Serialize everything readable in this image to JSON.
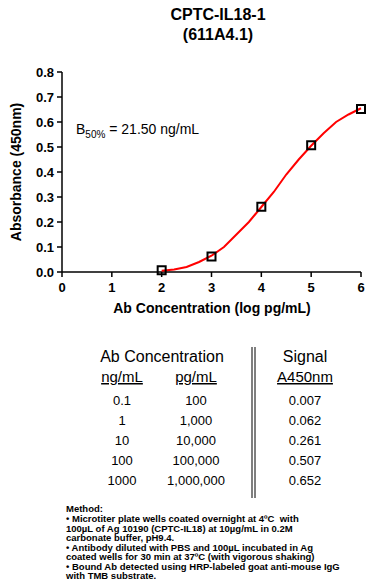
{
  "chart_data": {
    "type": "scatter",
    "title": "CPTC-IL18-1",
    "subtitle": "(611A4.1)",
    "x_label": "Ab Concentration (log pg/mL)",
    "y_label": "Absorbance (450nm)",
    "annotation": {
      "text": "B",
      "subscript": "50%",
      "suffix": " = 21.50 ng/mL"
    },
    "xlim": [
      0,
      6
    ],
    "xticks": [
      0,
      1,
      2,
      3,
      4,
      5,
      6
    ],
    "ylim": [
      0,
      0.8
    ],
    "yticks": [
      {
        "value": 0,
        "label": "0.0"
      },
      0.1,
      0.2,
      0.3,
      0.4,
      0.5,
      0.6,
      0.7,
      0.8
    ],
    "grid": false,
    "series": [
      {
        "type": "line",
        "color": "#ff0000",
        "line_style": "solid",
        "x": [
          2,
          2.25,
          2.5,
          2.75,
          3,
          3.25,
          3.5,
          3.75,
          4,
          4.25,
          4.5,
          4.75,
          5,
          5.25,
          5.5,
          5.75,
          6
        ],
        "values": [
          0.005,
          0.01,
          0.02,
          0.04,
          0.065,
          0.1,
          0.15,
          0.2,
          0.26,
          0.32,
          0.39,
          0.45,
          0.505,
          0.555,
          0.6,
          0.63,
          0.655
        ]
      },
      {
        "type": "scatter",
        "color": "#000000",
        "marker": "square",
        "x": [
          2,
          3,
          4,
          5,
          6
        ],
        "values": [
          0.007,
          0.062,
          0.261,
          0.507,
          0.652
        ]
      }
    ]
  },
  "table": {
    "header": [
      "Ab Concentration",
      "Signal"
    ],
    "subheader": [
      "ng/mL",
      "pg/mL",
      "A450nm"
    ],
    "rows": [
      [
        "0.1",
        "100",
        "0.007"
      ],
      [
        "1",
        "1,000",
        "0.062"
      ],
      [
        "10",
        "10,000",
        "0.261"
      ],
      [
        "100",
        "100,000",
        "0.507"
      ],
      [
        "1000",
        "1,000,000",
        "0.652"
      ]
    ]
  },
  "method": {
    "title": "Method:",
    "lines": [
      "• Microtiter plate wells coated overnight at 4ºC  with",
      "100µL of Ag 10190 (CPTC-IL18) at 10µg/mL in 0.2M",
      "carbonate buffer, pH9.4.",
      "• Antibody diluted with PBS and 100µL incubated in Ag",
      "coated wells for 30 min at 37ºC (with vigorous shaking)",
      "• Bound Ab detected using HRP-labeled goat anti-mouse IgG",
      "with TMB substrate."
    ]
  }
}
